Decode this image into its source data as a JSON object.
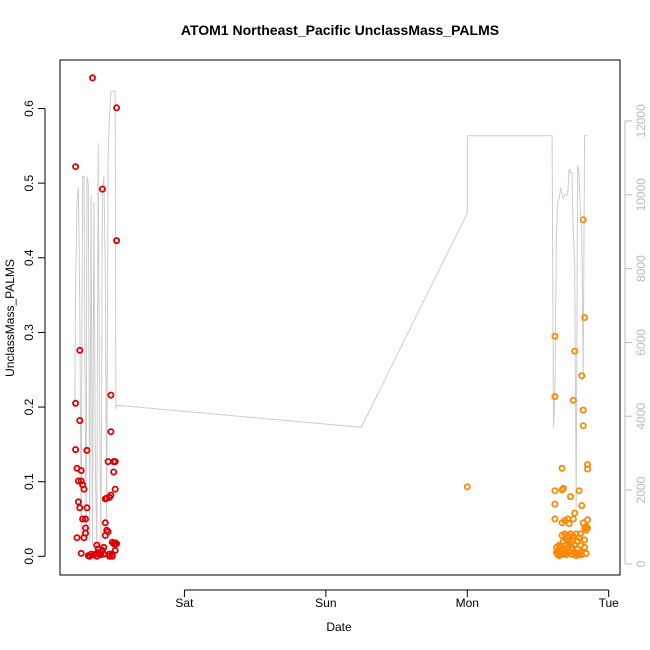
{
  "chart_data": {
    "type": "scatter",
    "title": "ATOM1 Northeast_Pacific UnclassMass_PALMS",
    "xlabel": "Date",
    "ylabel": "UnclassMass_PALMS",
    "x_ticks": [
      "Sat",
      "Sun",
      "Mon",
      "Tue"
    ],
    "x_range_days": [
      -0.88,
      3.08
    ],
    "ylim": [
      -0.025,
      0.665
    ],
    "y_ticks": [
      0.0,
      0.1,
      0.2,
      0.3,
      0.4,
      0.5,
      0.6
    ],
    "y2_ticks": [
      0,
      2000,
      4000,
      6000,
      8000,
      10000,
      12000
    ],
    "y2lim": [
      -300,
      13650
    ],
    "grid": false,
    "legend": "none",
    "colors": {
      "series1": "#dd0000",
      "series2": "#ff8800",
      "altitude": "#cccccc",
      "axis": "#000000",
      "y2axis": "#bbbbbb"
    },
    "series": [
      {
        "color": "#dd0000",
        "points": [
          [
            -0.77,
            0.522
          ],
          [
            -0.77,
            0.205
          ],
          [
            -0.77,
            0.143
          ],
          [
            -0.76,
            0.118
          ],
          [
            -0.76,
            0.025
          ],
          [
            -0.75,
            0.101
          ],
          [
            -0.75,
            0.073
          ],
          [
            -0.74,
            0.276
          ],
          [
            -0.74,
            0.182
          ],
          [
            -0.74,
            0.065
          ],
          [
            -0.73,
            0.115
          ],
          [
            -0.73,
            0.101
          ],
          [
            -0.73,
            0.004
          ],
          [
            -0.72,
            0.096
          ],
          [
            -0.72,
            0.05
          ],
          [
            -0.71,
            0.025
          ],
          [
            -0.71,
            0.09
          ],
          [
            -0.7,
            0.05
          ],
          [
            -0.7,
            0.038
          ],
          [
            -0.7,
            0.031
          ],
          [
            -0.69,
            0.065
          ],
          [
            -0.69,
            0.142
          ],
          [
            -0.68,
            0.001
          ],
          [
            -0.67,
            0.0
          ],
          [
            -0.66,
            0.003
          ],
          [
            -0.65,
            0.641
          ],
          [
            -0.64,
            0.002
          ],
          [
            -0.63,
            0.003
          ],
          [
            -0.62,
            0.0
          ],
          [
            -0.62,
            0.015
          ],
          [
            -0.61,
            0.01
          ],
          [
            -0.61,
            0.005
          ],
          [
            -0.6,
            0.003
          ],
          [
            -0.6,
            0.004
          ],
          [
            -0.59,
            0.002
          ],
          [
            -0.58,
            0.492
          ],
          [
            -0.58,
            0.008
          ],
          [
            -0.57,
            0.012
          ],
          [
            -0.57,
            0.003
          ],
          [
            -0.56,
            0.077
          ],
          [
            -0.56,
            0.045
          ],
          [
            -0.56,
            0.028
          ],
          [
            -0.55,
            0.078
          ],
          [
            -0.55,
            0.035
          ],
          [
            -0.54,
            0.127
          ],
          [
            -0.54,
            0.033
          ],
          [
            -0.53,
            0.0
          ],
          [
            -0.53,
            0.079
          ],
          [
            -0.53,
            0.003
          ],
          [
            -0.52,
            0.216
          ],
          [
            -0.52,
            0.082
          ],
          [
            -0.52,
            0.167
          ],
          [
            -0.51,
            0.019
          ],
          [
            -0.51,
            0.003
          ],
          [
            -0.51,
            0.0
          ],
          [
            -0.5,
            0.017
          ],
          [
            -0.5,
            0.127
          ],
          [
            -0.5,
            0.113
          ],
          [
            -0.49,
            0.008
          ],
          [
            -0.49,
            0.018
          ],
          [
            -0.49,
            0.09
          ],
          [
            -0.49,
            0.127
          ],
          [
            -0.48,
            0.601
          ],
          [
            -0.48,
            0.423
          ],
          [
            -0.48,
            0.017
          ]
        ]
      },
      {
        "color": "#ff8800",
        "points": [
          [
            2.0,
            0.093
          ],
          [
            2.62,
            0.295
          ],
          [
            2.62,
            0.214
          ],
          [
            2.62,
            0.088
          ],
          [
            2.62,
            0.07
          ],
          [
            2.62,
            0.05
          ],
          [
            2.63,
            0.005
          ],
          [
            2.63,
            0.012
          ],
          [
            2.64,
            0.002
          ],
          [
            2.64,
            0.008
          ],
          [
            2.64,
            0.004
          ],
          [
            2.65,
            0.015
          ],
          [
            2.65,
            0.01
          ],
          [
            2.65,
            0.001
          ],
          [
            2.66,
            0.013
          ],
          [
            2.66,
            0.004
          ],
          [
            2.67,
            0.089
          ],
          [
            2.67,
            0.045
          ],
          [
            2.67,
            0.028
          ],
          [
            2.67,
            0.008
          ],
          [
            2.67,
            0.118
          ],
          [
            2.68,
            0.091
          ],
          [
            2.68,
            0.02
          ],
          [
            2.68,
            0.003
          ],
          [
            2.69,
            0.048
          ],
          [
            2.69,
            0.03
          ],
          [
            2.69,
            0.01
          ],
          [
            2.7,
            0.022
          ],
          [
            2.7,
            0.005
          ],
          [
            2.7,
            0.002
          ],
          [
            2.71,
            0.05
          ],
          [
            2.71,
            0.028
          ],
          [
            2.71,
            0.012
          ],
          [
            2.72,
            0.044
          ],
          [
            2.72,
            0.02
          ],
          [
            2.72,
            0.006
          ],
          [
            2.73,
            0.03
          ],
          [
            2.73,
            0.015
          ],
          [
            2.73,
            0.08
          ],
          [
            2.74,
            0.003
          ],
          [
            2.74,
            0.012
          ],
          [
            2.74,
            0.022
          ],
          [
            2.75,
            0.209
          ],
          [
            2.75,
            0.05
          ],
          [
            2.75,
            0.027
          ],
          [
            2.76,
            0.275
          ],
          [
            2.76,
            0.058
          ],
          [
            2.76,
            0.015
          ],
          [
            2.76,
            0.004
          ],
          [
            2.77,
            0.03
          ],
          [
            2.77,
            0.005
          ],
          [
            2.77,
            0.001
          ],
          [
            2.78,
            0.004
          ],
          [
            2.78,
            0.02
          ],
          [
            2.78,
            0.01
          ],
          [
            2.79,
            0.025
          ],
          [
            2.79,
            0.088
          ],
          [
            2.79,
            0.002
          ],
          [
            2.8,
            0.005
          ],
          [
            2.8,
            0.015
          ],
          [
            2.8,
            0.03
          ],
          [
            2.81,
            0.002
          ],
          [
            2.81,
            0.242
          ],
          [
            2.81,
            0.068
          ],
          [
            2.82,
            0.451
          ],
          [
            2.82,
            0.175
          ],
          [
            2.82,
            0.196
          ],
          [
            2.82,
            0.045
          ],
          [
            2.83,
            0.32
          ],
          [
            2.83,
            0.022
          ],
          [
            2.83,
            0.038
          ],
          [
            2.83,
            0.012
          ],
          [
            2.84,
            0.004
          ],
          [
            2.84,
            0.035
          ],
          [
            2.84,
            0.04
          ],
          [
            2.85,
            0.117
          ],
          [
            2.85,
            0.123
          ],
          [
            2.85,
            0.049
          ],
          [
            2.85,
            0.038
          ]
        ]
      }
    ],
    "secondary_line": {
      "color": "#cccccc",
      "points": [
        [
          -0.775,
          4200
        ],
        [
          -0.77,
          7500
        ],
        [
          -0.76,
          9800
        ],
        [
          -0.75,
          10200
        ],
        [
          -0.74,
          7000
        ],
        [
          -0.73,
          600
        ],
        [
          -0.72,
          10500
        ],
        [
          -0.71,
          10500
        ],
        [
          -0.7,
          3000
        ],
        [
          -0.695,
          600
        ],
        [
          -0.69,
          10500
        ],
        [
          -0.68,
          10300
        ],
        [
          -0.67,
          600
        ],
        [
          -0.66,
          10000
        ],
        [
          -0.65,
          500
        ],
        [
          -0.64,
          9800
        ],
        [
          -0.63,
          2500
        ],
        [
          -0.62,
          500
        ],
        [
          -0.61,
          11400
        ],
        [
          -0.6,
          4000
        ],
        [
          -0.59,
          500
        ],
        [
          -0.58,
          10000
        ],
        [
          -0.57,
          10500
        ],
        [
          -0.56,
          8000
        ],
        [
          -0.55,
          1000
        ],
        [
          -0.54,
          11000
        ],
        [
          -0.53,
          12100
        ],
        [
          -0.52,
          12800
        ],
        [
          -0.51,
          12800
        ],
        [
          -0.5,
          12800
        ],
        [
          -0.49,
          12800
        ],
        [
          -0.485,
          4200
        ],
        [
          -0.48,
          4300
        ],
        [
          1.25,
          3700
        ],
        [
          2.0,
          9500
        ],
        [
          2.0,
          11600
        ],
        [
          2.5,
          11600
        ],
        [
          2.6,
          11600
        ],
        [
          2.61,
          3700
        ],
        [
          2.62,
          4500
        ],
        [
          2.63,
          9000
        ],
        [
          2.64,
          9800
        ],
        [
          2.65,
          9900
        ],
        [
          2.66,
          10200
        ],
        [
          2.67,
          10000
        ],
        [
          2.68,
          9900
        ],
        [
          2.69,
          10000
        ],
        [
          2.7,
          10000
        ],
        [
          2.71,
          10000
        ],
        [
          2.72,
          10700
        ],
        [
          2.73,
          10600
        ],
        [
          2.74,
          10600
        ],
        [
          2.75,
          9000
        ],
        [
          2.76,
          8100
        ],
        [
          2.77,
          1500
        ],
        [
          2.78,
          10800
        ],
        [
          2.79,
          10600
        ],
        [
          2.8,
          9500
        ],
        [
          2.81,
          9000
        ],
        [
          2.82,
          5000
        ],
        [
          2.83,
          11600
        ],
        [
          2.84,
          11600
        ],
        [
          2.85,
          11600
        ]
      ]
    }
  }
}
